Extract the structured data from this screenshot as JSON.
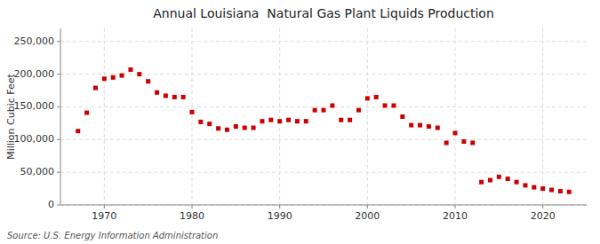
{
  "chart_data": {
    "type": "scatter",
    "title": "Annual Louisiana  Natural Gas Plant Liquids Production",
    "y_label": "Million Cubic Feet",
    "annotation": "Source: U.S. Energy Information Administration",
    "color": "#cc0000",
    "marker": "square",
    "grid": true,
    "x": [
      1967,
      1968,
      1969,
      1970,
      1971,
      1972,
      1973,
      1974,
      1975,
      1976,
      1977,
      1978,
      1979,
      1980,
      1981,
      1982,
      1983,
      1984,
      1985,
      1986,
      1987,
      1988,
      1989,
      1990,
      1991,
      1992,
      1993,
      1994,
      1995,
      1996,
      1997,
      1998,
      1999,
      2000,
      2001,
      2002,
      2003,
      2004,
      2005,
      2006,
      2007,
      2008,
      2009,
      2010,
      2011,
      2012,
      2013,
      2014,
      2015,
      2016,
      2017,
      2018,
      2019,
      2020,
      2021,
      2022,
      2023
    ],
    "values": [
      113000,
      141000,
      179000,
      193000,
      195000,
      198000,
      207000,
      200000,
      189000,
      172000,
      167000,
      165000,
      165000,
      142000,
      127000,
      124000,
      117000,
      115000,
      120000,
      118000,
      118000,
      128000,
      130000,
      128000,
      130000,
      128000,
      128000,
      145000,
      145000,
      152000,
      130000,
      130000,
      145000,
      163000,
      165000,
      152000,
      152000,
      135000,
      122000,
      122000,
      120000,
      118000,
      95000,
      110000,
      97000,
      95000,
      35000,
      38000,
      43000,
      40000,
      35000,
      30000,
      27000,
      25000,
      23000,
      21000,
      20000
    ],
    "xlim": [
      1965,
      2025
    ],
    "xticks": [
      1970,
      1980,
      1990,
      2000,
      2010,
      2020
    ],
    "ylim": [
      0,
      270000
    ],
    "yticks": [
      0,
      {
        "value": 50000,
        "label": "50,000"
      },
      {
        "value": 100000,
        "label": "100,000"
      },
      {
        "value": 150000,
        "label": "150,000"
      },
      {
        "value": 200000,
        "label": "200,000"
      },
      {
        "value": 250000,
        "label": "250,000"
      }
    ]
  }
}
